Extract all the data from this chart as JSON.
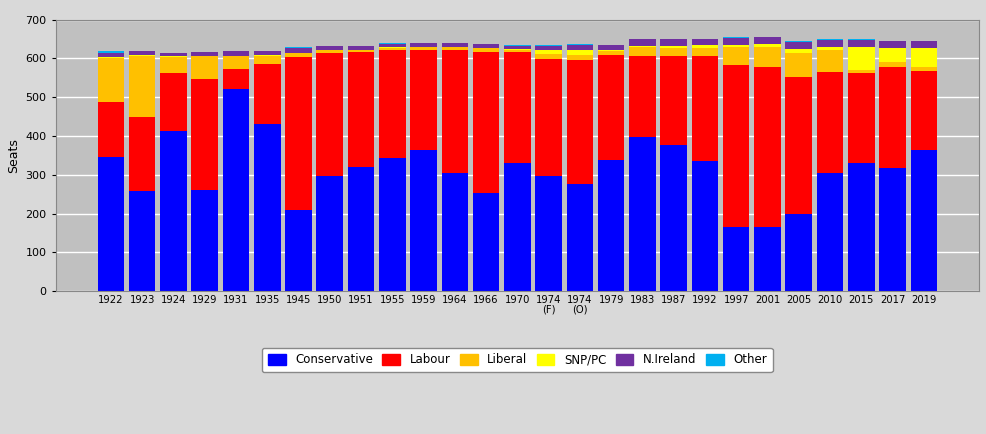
{
  "years": [
    "1922",
    "1923",
    "1924",
    "1929",
    "1931",
    "1935",
    "1945",
    "1950",
    "1951",
    "1955",
    "1959",
    "1964",
    "1966",
    "1970",
    "1974\n(F)",
    "1974\n(O)",
    "1979",
    "1983",
    "1987",
    "1992",
    "1997",
    "2001",
    "2005",
    "2010",
    "2015",
    "2017",
    "2019"
  ],
  "conservative": [
    345,
    258,
    412,
    260,
    521,
    432,
    210,
    298,
    321,
    344,
    365,
    304,
    253,
    330,
    297,
    277,
    339,
    397,
    376,
    336,
    165,
    166,
    198,
    306,
    331,
    317,
    365
  ],
  "labour": [
    142,
    191,
    151,
    287,
    52,
    154,
    393,
    315,
    295,
    277,
    258,
    317,
    363,
    287,
    301,
    319,
    269,
    209,
    229,
    271,
    418,
    412,
    355,
    258,
    232,
    262,
    202
  ],
  "liberal": [
    115,
    158,
    40,
    59,
    33,
    21,
    12,
    9,
    6,
    6,
    6,
    9,
    12,
    6,
    14,
    13,
    11,
    23,
    22,
    20,
    46,
    52,
    62,
    57,
    8,
    12,
    11
  ],
  "snppc": [
    2,
    3,
    3,
    1,
    1,
    1,
    0,
    0,
    1,
    2,
    1,
    0,
    0,
    1,
    9,
    14,
    4,
    4,
    6,
    7,
    6,
    6,
    9,
    9,
    59,
    35,
    48
  ],
  "nireland": [
    9,
    9,
    9,
    9,
    11,
    12,
    12,
    10,
    9,
    9,
    9,
    9,
    9,
    9,
    12,
    12,
    12,
    17,
    17,
    17,
    18,
    18,
    18,
    18,
    18,
    18,
    18
  ],
  "other": [
    7,
    0,
    0,
    0,
    0,
    0,
    3,
    1,
    1,
    1,
    1,
    1,
    0,
    1,
    2,
    1,
    0,
    0,
    0,
    0,
    1,
    1,
    2,
    1,
    1,
    1,
    1
  ],
  "colors": {
    "conservative": "#0000FF",
    "labour": "#FF0000",
    "liberal": "#FFC000",
    "snppc": "#FFFF00",
    "nireland": "#7030A0",
    "other": "#00B0F0"
  },
  "ylabel": "Seats",
  "ylim": [
    0,
    700
  ],
  "yticks": [
    0,
    100,
    200,
    300,
    400,
    500,
    600,
    700
  ],
  "fig_bg": "#D9D9D9",
  "plot_bg": "#C0C0C0",
  "grid_color": "#FFFFFF",
  "legend_labels": [
    "Conservative",
    "Labour",
    "Liberal",
    "SNP/PC",
    "N.Ireland",
    "Other"
  ]
}
